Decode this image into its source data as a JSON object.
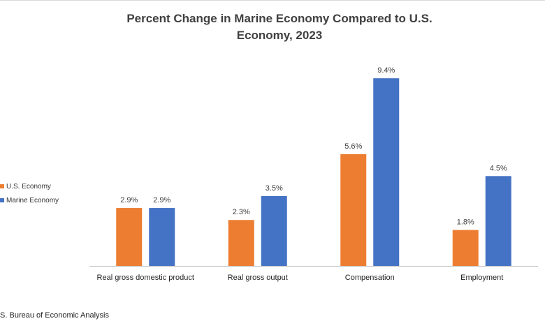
{
  "chart_data": {
    "type": "bar",
    "title": "Percent Change in Marine Economy Compared to U.S. Economy, 2023",
    "categories": [
      "Real gross domestic product",
      "Real gross output",
      "Compensation",
      "Employment"
    ],
    "series": [
      {
        "name": "U.S. Economy",
        "values": [
          2.9,
          2.3,
          5.6,
          1.8
        ],
        "labels": [
          "2.9%",
          "2.3%",
          "5.6%",
          "1.8%"
        ],
        "color": "#ED7D31"
      },
      {
        "name": "Marine Economy",
        "values": [
          2.9,
          3.5,
          9.4,
          4.5
        ],
        "labels": [
          "2.9%",
          "3.5%",
          "9.4%",
          "4.5%"
        ],
        "color": "#4472C4"
      }
    ],
    "ylim": [
      0,
      10
    ],
    "xlabel": "",
    "ylabel": "",
    "grid": false,
    "legend_position": "left"
  },
  "source_text": ".S. Bureau of Economic Analysis"
}
